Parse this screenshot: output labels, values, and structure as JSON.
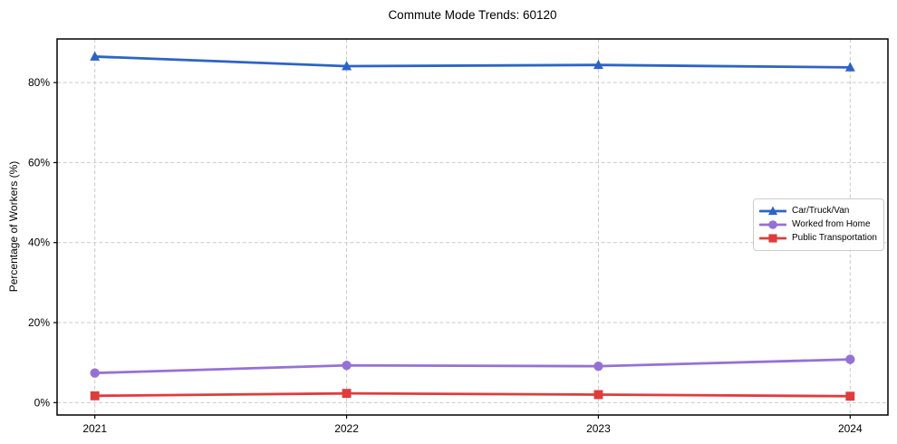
{
  "chart_data": {
    "type": "line",
    "title": "Commute Mode Trends: 60120",
    "xlabel": "",
    "ylabel": "Percentage of Workers (%)",
    "x": [
      2021,
      2022,
      2023,
      2024
    ],
    "x_tick_labels": [
      "2021",
      "2022",
      "2023",
      "2024"
    ],
    "y_ticks": [
      0,
      20,
      40,
      60,
      80
    ],
    "y_tick_labels": [
      "0%",
      "20%",
      "40%",
      "60%",
      "80%"
    ],
    "xlim": [
      2020.85,
      2024.15
    ],
    "ylim": [
      -3.1,
      90.9
    ],
    "grid": true,
    "grid_style": "dashed",
    "legend_position": "center right",
    "series": [
      {
        "name": "Car/Truck/Van",
        "marker": "triangle",
        "color": "#2d63c8",
        "values": [
          86.5,
          84.1,
          84.4,
          83.8
        ]
      },
      {
        "name": "Worked from Home",
        "marker": "circle",
        "color": "#9671d5",
        "values": [
          7.4,
          9.3,
          9.1,
          10.8
        ]
      },
      {
        "name": "Public Transportation",
        "marker": "square",
        "color": "#e03c3c",
        "values": [
          1.7,
          2.3,
          2.0,
          1.6
        ]
      }
    ]
  },
  "colors": {
    "background": "#ffffff",
    "grid": "#c9c9c9",
    "axis": "#000000",
    "tick_text": "#000000",
    "legend_border": "#cccccc"
  }
}
